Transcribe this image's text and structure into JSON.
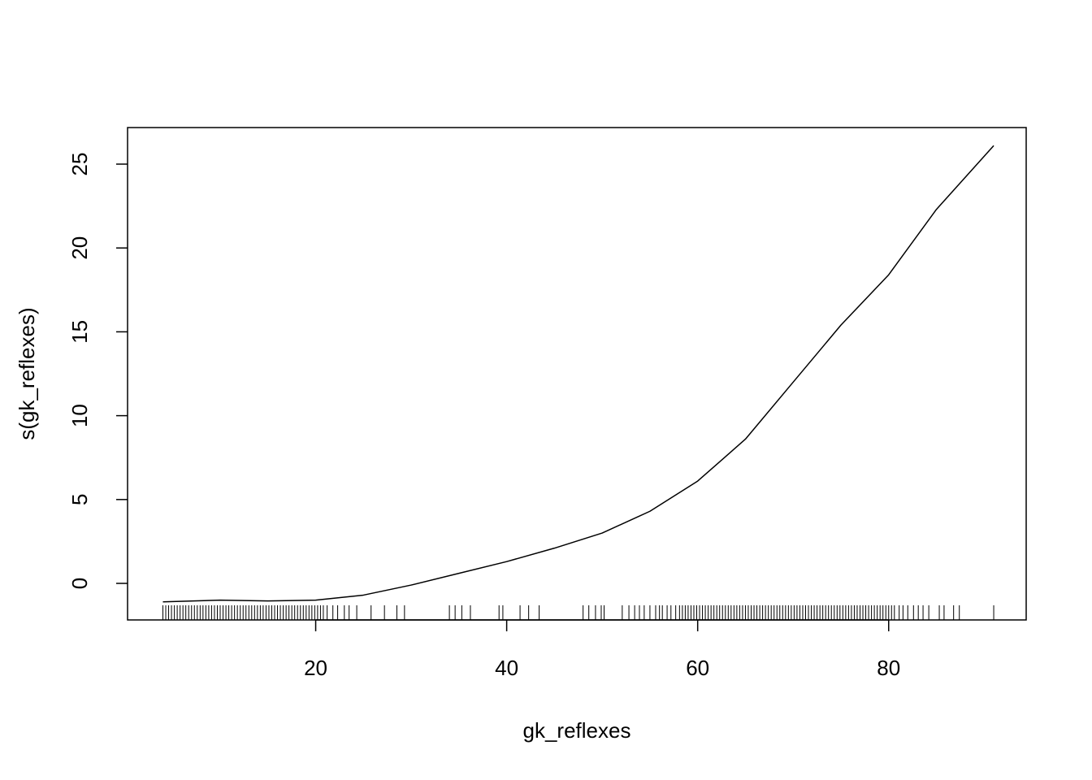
{
  "chart_data": {
    "type": "line",
    "x_label": "gk_reflexes",
    "y_label": "s(gk_reflexes)",
    "x": [
      4,
      10,
      15,
      20,
      25,
      30,
      35,
      40,
      45,
      50,
      55,
      60,
      65,
      70,
      75,
      80,
      85,
      91
    ],
    "values": [
      -1.1,
      -1.0,
      -1.05,
      -1.0,
      -0.7,
      -0.1,
      0.6,
      1.3,
      2.1,
      3.0,
      4.3,
      6.1,
      8.6,
      12.0,
      15.4,
      18.4,
      22.3,
      26.1
    ],
    "color": "#000000",
    "rug": [
      4.0,
      4.3,
      4.6,
      4.9,
      5.2,
      5.5,
      5.8,
      6.1,
      6.4,
      6.7,
      7.0,
      7.3,
      7.6,
      7.9,
      8.2,
      8.5,
      8.8,
      9.1,
      9.4,
      9.7,
      10.0,
      10.3,
      10.6,
      10.9,
      11.2,
      11.5,
      11.8,
      12.1,
      12.4,
      12.7,
      13.0,
      13.3,
      13.6,
      13.9,
      14.2,
      14.5,
      14.8,
      15.1,
      15.4,
      15.7,
      16.0,
      16.3,
      16.6,
      16.9,
      17.2,
      17.5,
      17.8,
      18.1,
      18.4,
      18.7,
      19.0,
      19.3,
      19.6,
      19.9,
      20.2,
      20.5,
      20.8,
      21.2,
      21.8,
      22.3,
      23.0,
      23.5,
      24.3,
      25.8,
      27.2,
      28.5,
      29.3,
      34.0,
      34.6,
      35.3,
      36.2,
      39.2,
      39.6,
      41.4,
      42.3,
      43.4,
      48.0,
      48.6,
      49.3,
      49.9,
      50.2,
      52.1,
      52.8,
      53.4,
      53.9,
      54.4,
      55.0,
      55.6,
      56.0,
      56.3,
      56.8,
      57.2,
      57.7,
      58.1,
      58.4,
      58.7,
      59.0,
      59.3,
      59.6,
      59.9,
      60.2,
      60.5,
      60.8,
      61.1,
      61.4,
      61.7,
      62.0,
      62.3,
      62.6,
      62.9,
      63.2,
      63.5,
      63.8,
      64.1,
      64.4,
      64.7,
      65.0,
      65.3,
      65.6,
      65.9,
      66.2,
      66.5,
      66.8,
      67.1,
      67.4,
      67.7,
      68.0,
      68.3,
      68.6,
      68.9,
      69.2,
      69.5,
      69.8,
      70.1,
      70.4,
      70.7,
      71.0,
      71.3,
      71.6,
      71.9,
      72.2,
      72.5,
      72.8,
      73.1,
      73.4,
      73.7,
      74.0,
      74.3,
      74.6,
      74.9,
      75.2,
      75.5,
      75.8,
      76.1,
      76.4,
      76.7,
      77.0,
      77.3,
      77.6,
      77.9,
      78.2,
      78.5,
      78.8,
      79.1,
      79.4,
      79.7,
      80.0,
      80.3,
      80.6,
      81.1,
      81.5,
      82.0,
      82.6,
      83.1,
      83.6,
      84.2,
      85.3,
      85.8,
      86.8,
      87.4,
      91.0
    ],
    "xlim": [
      0.3,
      94.4
    ],
    "ylim": [
      -2.18,
      27.18
    ],
    "xticks": [
      20,
      40,
      60,
      80
    ],
    "yticks": [
      0,
      5,
      10,
      15,
      20,
      25
    ],
    "grid": false
  }
}
